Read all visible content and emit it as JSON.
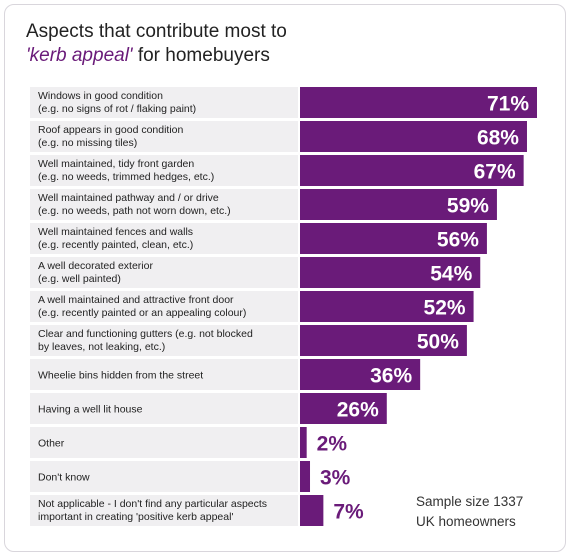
{
  "title_line1": "Aspects that contribute most to",
  "title_accent": "'kerb appeal'",
  "title_line2_rest": " for homebuyers",
  "sample_note_line1": "Sample size 1337",
  "sample_note_line2": "UK homeowners",
  "colors": {
    "bar": "#6a1b79",
    "label_bg": "#f0eff1",
    "label_text": "#222222"
  },
  "chart_data": {
    "type": "bar",
    "orientation": "horizontal",
    "value_suffix": "%",
    "xlim": [
      0,
      71
    ],
    "categories": [
      [
        "Windows in good condition",
        "(e.g. no signs of rot / flaking paint)"
      ],
      [
        "Roof appears in good condition",
        "(e.g. no missing tiles)"
      ],
      [
        "Well maintained, tidy front garden",
        "(e.g. no weeds, trimmed hedges, etc.)"
      ],
      [
        "Well maintained pathway and / or drive",
        "(e.g. no weeds, path not worn down, etc.)"
      ],
      [
        "Well maintained fences and walls",
        "(e.g. recently painted, clean, etc.)"
      ],
      [
        "A well decorated exterior",
        "(e.g. well painted)"
      ],
      [
        "A well maintained and attractive front door",
        "(e.g. recently painted or an appealing colour)"
      ],
      [
        "Clear and functioning gutters (e.g. not blocked",
        "by leaves, not leaking, etc.)"
      ],
      [
        "Wheelie bins hidden from the street"
      ],
      [
        "Having a well lit house"
      ],
      [
        "Other"
      ],
      [
        "Don't know"
      ],
      [
        "Not applicable - I don't find any particular aspects",
        "important in creating 'positive kerb appeal'"
      ]
    ],
    "values": [
      71,
      68,
      67,
      59,
      56,
      54,
      52,
      50,
      36,
      26,
      2,
      3,
      7
    ]
  }
}
